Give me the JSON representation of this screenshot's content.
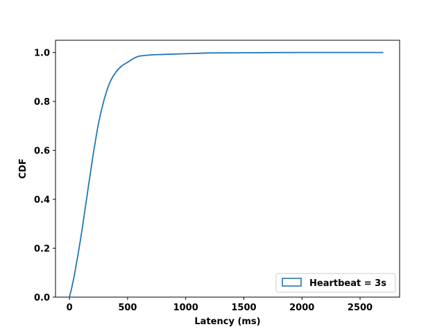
{
  "chart_data": {
    "type": "line",
    "title": "",
    "xlabel": "Latency (ms)",
    "ylabel": "CDF",
    "xlim": [
      -120,
      2840
    ],
    "ylim": [
      0.0,
      1.05
    ],
    "grid": false,
    "legend_position": "lower-right",
    "x_ticks": [
      {
        "value": 0,
        "label": "0"
      },
      {
        "value": 500,
        "label": "500"
      },
      {
        "value": 1000,
        "label": "1000"
      },
      {
        "value": 1500,
        "label": "1500"
      },
      {
        "value": 2000,
        "label": "2000"
      },
      {
        "value": 2500,
        "label": "2500"
      }
    ],
    "y_ticks": [
      {
        "value": 0.0,
        "label": "0.0"
      },
      {
        "value": 0.2,
        "label": "0.2"
      },
      {
        "value": 0.4,
        "label": "0.4"
      },
      {
        "value": 0.6,
        "label": "0.6"
      },
      {
        "value": 0.8,
        "label": "0.8"
      },
      {
        "value": 1.0,
        "label": "1.0"
      }
    ],
    "series": [
      {
        "name": "Heartbeat = 3s",
        "color": "#1f77b4",
        "legend_style": "open-rectangle",
        "x": [
          0,
          25,
          50,
          100,
          150,
          200,
          250,
          300,
          350,
          400,
          450,
          500,
          550,
          600,
          700,
          800,
          1000,
          1200,
          1500,
          2000,
          2500,
          2700
        ],
        "y": [
          0.0,
          0.05,
          0.11,
          0.25,
          0.41,
          0.57,
          0.71,
          0.81,
          0.88,
          0.92,
          0.945,
          0.96,
          0.975,
          0.985,
          0.99,
          0.992,
          0.995,
          0.998,
          0.999,
          1.0,
          1.0,
          1.0
        ]
      }
    ]
  }
}
